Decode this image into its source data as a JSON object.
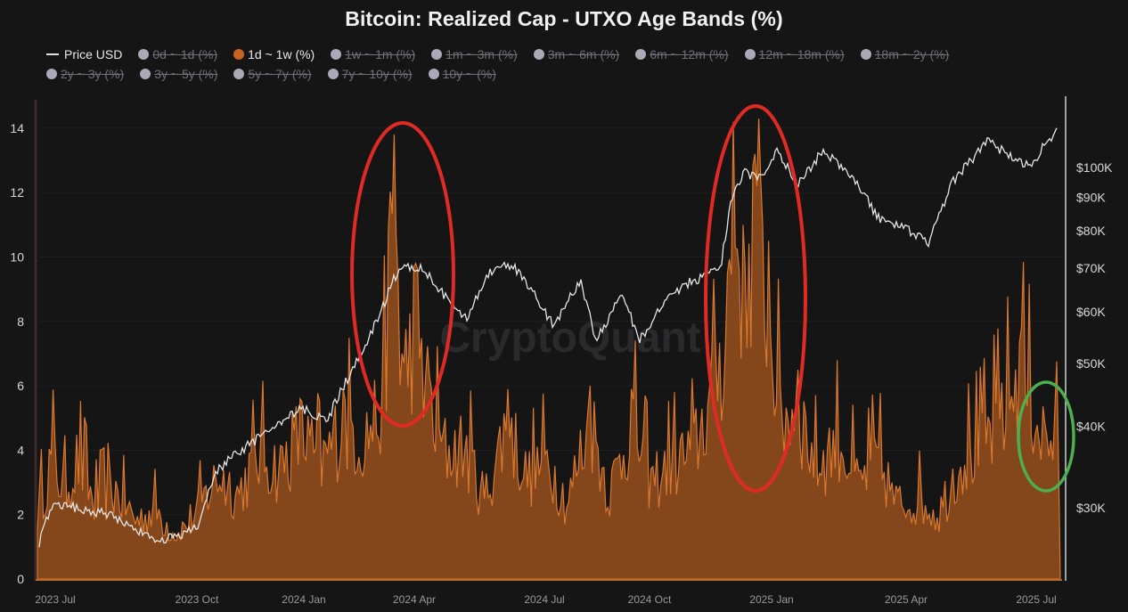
{
  "title": "Bitcoin: Realized Cap - UTXO Age Bands (%)",
  "legend": {
    "rows": [
      [
        {
          "label": "Price USD",
          "type": "line",
          "active": true
        },
        {
          "label": "0d ~ 1d (%)",
          "type": "dot",
          "active": false
        },
        {
          "label": "1d ~ 1w (%)",
          "type": "dot",
          "active": true
        },
        {
          "label": "1w ~ 1m (%)",
          "type": "dot",
          "active": false
        },
        {
          "label": "1m ~ 3m (%)",
          "type": "dot",
          "active": false
        },
        {
          "label": "3m ~ 6m (%)",
          "type": "dot",
          "active": false
        },
        {
          "label": "6m ~ 12m (%)",
          "type": "dot",
          "active": false
        },
        {
          "label": "12m ~ 18m (%)",
          "type": "dot",
          "active": false
        },
        {
          "label": "18m ~ 2y (%)",
          "type": "dot",
          "active": false
        }
      ],
      [
        {
          "label": "2y ~ 3y (%)",
          "type": "dot",
          "active": false
        },
        {
          "label": "3y ~ 5y (%)",
          "type": "dot",
          "active": false
        },
        {
          "label": "5y ~ 7y (%)",
          "type": "dot",
          "active": false
        },
        {
          "label": "7y ~ 10y (%)",
          "type": "dot",
          "active": false
        },
        {
          "label": "10y ~ (%)",
          "type": "dot",
          "active": false
        }
      ]
    ]
  },
  "watermark": "CryptoQuant",
  "colors": {
    "background": "#151516",
    "area": "#c8621e",
    "area_fill": "#8a4a1c",
    "price_line": "#e6e6e6",
    "annotation_red": "#e02a24",
    "annotation_green": "#4caf50",
    "grid": "#1f1f21"
  },
  "chart_data": {
    "type": "area",
    "title": "Bitcoin: Realized Cap - UTXO Age Bands (%)",
    "xlabel": "",
    "ylabel_left": "1d ~ 1w (%)",
    "ylabel_right": "Price USD (log)",
    "ylim_left": [
      0,
      14.5
    ],
    "yticks_left": [
      "0",
      "2",
      "4",
      "6",
      "8",
      "10",
      "12",
      "14"
    ],
    "yticks_right": [
      "$30K",
      "$40K",
      "$50K",
      "$60K",
      "$70K",
      "$80K",
      "$90K",
      "$100K"
    ],
    "xticks": [
      "2023 Jul",
      "2023 Oct",
      "2024 Jan",
      "2024 Apr",
      "2024 Jul",
      "2024 Oct",
      "2025 Jan",
      "2025 Apr",
      "2025 Jul"
    ],
    "grid": true,
    "legend_position": "top",
    "series": [
      {
        "name": "1d ~ 1w (%)",
        "axis": "left",
        "x": [
          "2023-06-20",
          "2023-07-01",
          "2023-07-10",
          "2023-07-20",
          "2023-08-01",
          "2023-08-15",
          "2023-09-01",
          "2023-09-15",
          "2023-10-01",
          "2023-10-15",
          "2023-11-01",
          "2023-11-15",
          "2023-12-01",
          "2023-12-15",
          "2024-01-01",
          "2024-01-15",
          "2024-02-01",
          "2024-02-15",
          "2024-03-01",
          "2024-03-05",
          "2024-03-10",
          "2024-03-15",
          "2024-03-25",
          "2024-04-05",
          "2024-04-15",
          "2024-05-01",
          "2024-05-15",
          "2024-06-01",
          "2024-06-15",
          "2024-07-01",
          "2024-07-15",
          "2024-08-01",
          "2024-08-15",
          "2024-09-01",
          "2024-09-15",
          "2024-10-01",
          "2024-10-15",
          "2024-11-01",
          "2024-11-10",
          "2024-11-15",
          "2024-11-22",
          "2024-12-01",
          "2024-12-10",
          "2024-12-20",
          "2025-01-01",
          "2025-01-15",
          "2025-02-01",
          "2025-02-15",
          "2025-03-01",
          "2025-03-15",
          "2025-04-01",
          "2025-04-15",
          "2025-05-01",
          "2025-05-15",
          "2025-06-01",
          "2025-06-15",
          "2025-07-01",
          "2025-07-10"
        ],
        "values": [
          2.5,
          4.6,
          3.3,
          4.5,
          2.8,
          3.4,
          2.2,
          2.6,
          1.6,
          2.5,
          3.9,
          3.2,
          4.7,
          4.1,
          5.5,
          4.2,
          5.9,
          5.2,
          6.5,
          10.8,
          13.8,
          7.0,
          9.8,
          6.3,
          4.8,
          4.9,
          3.0,
          5.9,
          3.8,
          4.5,
          2.8,
          6.0,
          3.2,
          5.9,
          3.6,
          4.4,
          4.7,
          7.1,
          9.5,
          14.2,
          11.0,
          13.2,
          10.5,
          6.0,
          6.5,
          4.2,
          5.3,
          3.5,
          4.6,
          2.8,
          3.0,
          2.4,
          4.5,
          4.9,
          6.1,
          7.8,
          5.4,
          5.1
        ]
      },
      {
        "name": "Price USD",
        "axis": "right",
        "x": [
          "2023-06-20",
          "2023-07-01",
          "2023-08-15",
          "2023-09-15",
          "2023-10-15",
          "2023-11-01",
          "2023-12-01",
          "2024-01-01",
          "2024-01-20",
          "2024-02-15",
          "2024-03-01",
          "2024-03-14",
          "2024-04-01",
          "2024-04-15",
          "2024-05-01",
          "2024-05-20",
          "2024-06-05",
          "2024-07-05",
          "2024-07-25",
          "2024-08-05",
          "2024-08-25",
          "2024-09-06",
          "2024-09-30",
          "2024-10-15",
          "2024-11-05",
          "2024-11-13",
          "2024-11-22",
          "2024-12-05",
          "2024-12-17",
          "2025-01-01",
          "2025-01-20",
          "2025-02-10",
          "2025-03-01",
          "2025-03-15",
          "2025-04-08",
          "2025-04-25",
          "2025-05-10",
          "2025-05-22",
          "2025-06-05",
          "2025-06-22",
          "2025-07-01",
          "2025-07-10",
          "2025-07-14"
        ],
        "values": [
          26000,
          30500,
          29200,
          26500,
          27800,
          34500,
          38500,
          42500,
          41000,
          52000,
          61000,
          71000,
          69500,
          63500,
          58500,
          69500,
          71000,
          57000,
          67000,
          54000,
          64000,
          54000,
          64000,
          67000,
          69500,
          88000,
          98000,
          97000,
          106000,
          94000,
          106000,
          97000,
          84000,
          82000,
          76500,
          94500,
          103000,
          111000,
          104000,
          101000,
          107000,
          113000,
          121000
        ]
      }
    ],
    "annotations": [
      {
        "shape": "ellipse",
        "color": "red",
        "around": "2024-03 peak"
      },
      {
        "shape": "ellipse",
        "color": "red",
        "around": "2024-11 / 2024-12 peak"
      },
      {
        "shape": "ellipse",
        "color": "green",
        "around": "2025-07 recent"
      }
    ]
  }
}
